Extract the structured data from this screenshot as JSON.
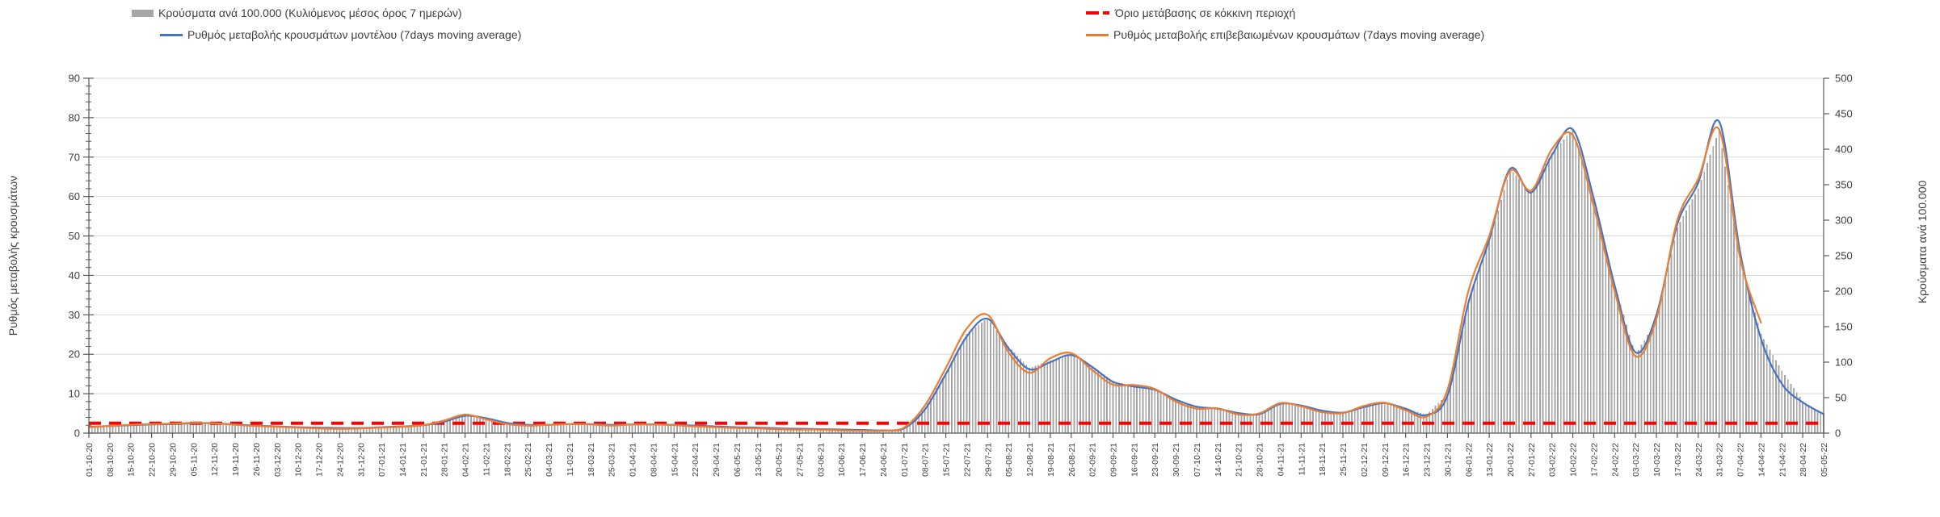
{
  "chart_data": {
    "type": "bar+line",
    "x": [
      "01-10-20",
      "08-10-20",
      "15-10-20",
      "22-10-20",
      "29-10-20",
      "05-11-20",
      "12-11-20",
      "19-11-20",
      "26-11-20",
      "03-12-20",
      "10-12-20",
      "17-12-20",
      "24-12-20",
      "31-12-20",
      "07-01-21",
      "14-01-21",
      "21-01-21",
      "28-01-21",
      "04-02-21",
      "11-02-21",
      "18-02-21",
      "25-02-21",
      "04-03-21",
      "11-03-21",
      "18-03-21",
      "25-03-21",
      "01-04-21",
      "08-04-21",
      "15-04-21",
      "22-04-21",
      "29-04-21",
      "06-05-21",
      "13-05-21",
      "20-05-21",
      "27-05-21",
      "03-06-21",
      "10-06-21",
      "17-06-21",
      "24-06-21",
      "01-07-21",
      "08-07-21",
      "15-07-21",
      "22-07-21",
      "29-07-21",
      "05-08-21",
      "12-08-21",
      "19-08-21",
      "26-08-21",
      "02-09-21",
      "09-09-21",
      "16-09-21",
      "23-09-21",
      "30-09-21",
      "07-10-21",
      "14-10-21",
      "21-10-21",
      "28-10-21",
      "04-11-21",
      "11-11-21",
      "18-11-21",
      "25-11-21",
      "02-12-21",
      "09-12-21",
      "16-12-21",
      "23-12-21",
      "30-12-21",
      "06-01-22",
      "13-01-22",
      "20-01-22",
      "27-01-22",
      "03-02-22",
      "10-02-22",
      "17-02-22",
      "24-02-22",
      "03-03-22",
      "10-03-22",
      "17-03-22",
      "24-03-22",
      "31-03-22",
      "07-04-22",
      "14-04-22",
      "21-04-22",
      "28-04-22",
      "05-05-22"
    ],
    "axes": {
      "left": {
        "title": "Ρυθμός μεταβολής κρουσμάτων",
        "min": 0,
        "max": 90,
        "step": 10,
        "minor_step": 2
      },
      "right": {
        "title": "Κρούσματα ανά 100.000",
        "min": 0,
        "max": 500,
        "step": 50
      }
    },
    "grid": true,
    "legend_position": "top",
    "style": {
      "grid_color": "#d9d9d9",
      "axis_color": "#595959",
      "tick_label_color": "#404040",
      "background": "#ffffff"
    },
    "series": [
      {
        "name": "Κρούσματα ανά 100.000 (Κυλιόμενος μέσος όρος 7 ημερών)",
        "type": "bar",
        "axis": "right",
        "color": "#a6a6a6",
        "values": [
          10,
          11,
          12,
          13,
          14,
          15,
          15,
          13,
          11,
          10,
          9,
          8,
          8,
          8,
          9,
          10,
          12,
          17,
          26,
          22,
          15,
          12,
          12,
          13,
          13,
          12,
          13,
          13,
          12,
          11,
          10,
          9,
          8,
          7,
          6,
          6,
          5,
          4,
          4,
          7,
          35,
          85,
          140,
          162,
          122,
          92,
          102,
          112,
          95,
          73,
          67,
          62,
          48,
          38,
          35,
          29,
          27,
          42,
          40,
          32,
          29,
          37,
          43,
          35,
          26,
          55,
          185,
          270,
          372,
          340,
          395,
          428,
          330,
          210,
          110,
          160,
          290,
          345,
          428,
          245,
          140,
          88,
          45,
          27
        ]
      },
      {
        "name": "Ρυθμός μεταβολής κρουσμάτων μοντέλου (7days moving average)",
        "type": "line",
        "axis": "left",
        "color": "#4472c4",
        "values": [
          1.6,
          1.8,
          2.0,
          2.2,
          2.3,
          2.5,
          2.5,
          2.2,
          1.9,
          1.7,
          1.5,
          1.4,
          1.3,
          1.3,
          1.5,
          1.7,
          2.0,
          2.9,
          4.4,
          3.8,
          2.6,
          2.1,
          2.1,
          2.3,
          2.3,
          2.1,
          2.2,
          2.2,
          2.1,
          1.9,
          1.7,
          1.5,
          1.4,
          1.2,
          1.1,
          1.0,
          0.9,
          0.8,
          0.7,
          1.2,
          6.0,
          15.0,
          24.5,
          29.0,
          21.5,
          16.2,
          18.0,
          19.8,
          16.8,
          13.0,
          11.8,
          11.0,
          8.5,
          6.7,
          6.2,
          5.1,
          4.8,
          7.4,
          7.0,
          5.7,
          5.2,
          6.6,
          7.6,
          6.2,
          4.6,
          9.5,
          33.0,
          49.0,
          67.0,
          61.0,
          70.5,
          77.0,
          59.5,
          37.5,
          20.5,
          30.0,
          53.0,
          63.5,
          79.0,
          46.0,
          24.0,
          12.5,
          7.8,
          4.8
        ]
      },
      {
        "name": "Ρυθμός μεταβολής επιβεβαιωμένων κρουσμάτων (7days moving average)",
        "type": "line",
        "axis": "left",
        "color": "#ed7d31",
        "values": [
          1.5,
          1.8,
          2.1,
          2.3,
          2.4,
          2.6,
          2.5,
          2.1,
          1.8,
          1.6,
          1.4,
          1.2,
          1.1,
          1.2,
          1.4,
          1.6,
          2.0,
          3.2,
          4.7,
          3.5,
          2.3,
          1.9,
          2.1,
          2.3,
          2.2,
          1.9,
          2.2,
          2.2,
          2.0,
          1.7,
          1.5,
          1.3,
          1.2,
          1.0,
          0.9,
          0.9,
          0.7,
          0.6,
          0.6,
          1.4,
          7.0,
          16.5,
          26.5,
          30.0,
          20.5,
          15.3,
          19.0,
          20.3,
          16.0,
          12.3,
          12.2,
          11.2,
          8.0,
          6.2,
          6.3,
          4.7,
          5.0,
          7.6,
          6.8,
          5.3,
          5.1,
          6.9,
          7.7,
          5.8,
          4.2,
          11.0,
          36.0,
          50.0,
          66.5,
          61.5,
          72.0,
          75.5,
          57.5,
          36.0,
          19.5,
          29.0,
          54.0,
          64.5,
          77.0,
          44.5,
          28.0,
          null,
          null,
          null
        ]
      },
      {
        "name": "Όριο μετάβασης σε κόκκινη περιοχή",
        "type": "threshold-line",
        "axis": "left",
        "color": "#ff0000",
        "dashed": true,
        "value": 2.5
      }
    ]
  }
}
